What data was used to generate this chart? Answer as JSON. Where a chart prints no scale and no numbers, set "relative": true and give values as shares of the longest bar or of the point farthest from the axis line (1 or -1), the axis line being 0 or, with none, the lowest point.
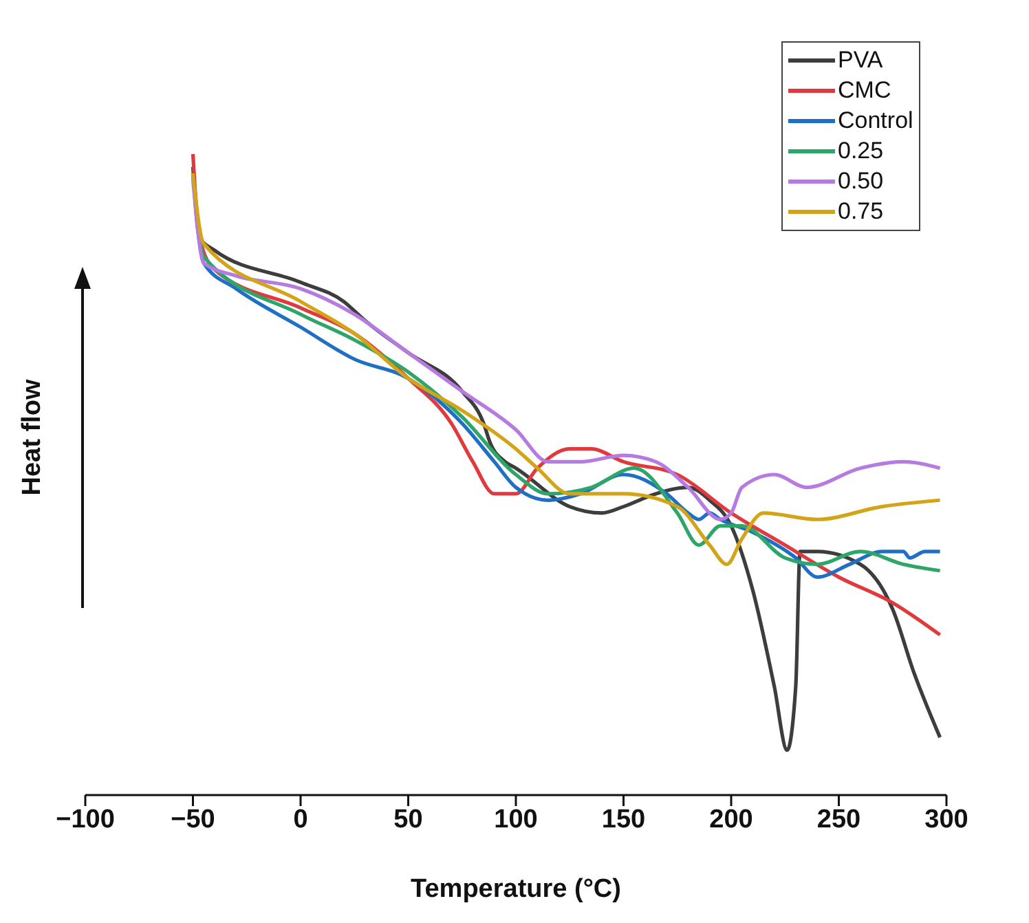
{
  "chart_data": {
    "type": "line",
    "relative": true,
    "xlabel": "Temperature (°C)",
    "ylabel": "Heat flow",
    "xlim": [
      -100,
      300
    ],
    "xticks": [
      -100,
      -50,
      0,
      50,
      100,
      150,
      200,
      250,
      300
    ],
    "grid": false,
    "legend": "top right",
    "marker": "none",
    "line_style": "solid",
    "series": [
      {
        "name": "PVA",
        "color": "#3d3d3d",
        "x": [
          -50,
          -47,
          -40,
          0,
          20,
          30,
          50,
          75,
          85,
          88,
          95,
          100,
          125,
          140,
          150,
          165,
          180,
          190,
          200,
          210,
          220,
          226,
          230,
          232,
          240,
          260,
          275,
          285,
          297
        ],
        "values": [
          0.98,
          0.87,
          0.85,
          0.8,
          0.77,
          0.74,
          0.69,
          0.63,
          0.58,
          0.55,
          0.52,
          0.51,
          0.45,
          0.44,
          0.45,
          0.47,
          0.48,
          0.46,
          0.42,
          0.32,
          0.17,
          0.07,
          0.17,
          0.38,
          0.38,
          0.36,
          0.29,
          0.19,
          0.09
        ]
      },
      {
        "name": "CMC",
        "color": "#e0393e",
        "x": [
          -50,
          -47,
          -40,
          0,
          25,
          50,
          70,
          80,
          90,
          100,
          110,
          125,
          135,
          150,
          175,
          200,
          225,
          250,
          275,
          297
        ],
        "values": [
          1,
          0.87,
          0.82,
          0.76,
          0.72,
          0.65,
          0.58,
          0.52,
          0.47,
          0.47,
          0.51,
          0.54,
          0.54,
          0.52,
          0.5,
          0.44,
          0.39,
          0.34,
          0.3,
          0.25
        ]
      },
      {
        "name": "Control",
        "color": "#1f6fc5",
        "x": [
          -50,
          -45,
          -30,
          0,
          25,
          50,
          75,
          90,
          100,
          115,
          130,
          150,
          170,
          180,
          185,
          190,
          195,
          210,
          230,
          240,
          255,
          270,
          280,
          283,
          290,
          297
        ],
        "values": [
          0.97,
          0.83,
          0.79,
          0.73,
          0.68,
          0.65,
          0.58,
          0.52,
          0.48,
          0.46,
          0.47,
          0.5,
          0.47,
          0.44,
          0.43,
          0.44,
          0.43,
          0.41,
          0.37,
          0.34,
          0.36,
          0.38,
          0.38,
          0.37,
          0.38,
          0.38
        ]
      },
      {
        "name": "0.25",
        "color": "#2ea66a",
        "x": [
          -50,
          -45,
          0,
          25,
          50,
          75,
          100,
          115,
          135,
          155,
          175,
          185,
          195,
          205,
          225,
          240,
          260,
          280,
          297
        ],
        "values": [
          0.97,
          0.84,
          0.75,
          0.71,
          0.66,
          0.59,
          0.5,
          0.47,
          0.48,
          0.51,
          0.44,
          0.39,
          0.42,
          0.42,
          0.37,
          0.36,
          0.38,
          0.36,
          0.35
        ]
      },
      {
        "name": "0.50",
        "color": "#b57be0",
        "x": [
          -50,
          -45,
          -30,
          0,
          25,
          50,
          75,
          100,
          115,
          130,
          150,
          165,
          180,
          195,
          200,
          205,
          220,
          235,
          260,
          280,
          297
        ],
        "values": [
          0.96,
          0.83,
          0.81,
          0.79,
          0.75,
          0.69,
          0.63,
          0.57,
          0.52,
          0.52,
          0.53,
          0.52,
          0.48,
          0.43,
          0.44,
          0.48,
          0.5,
          0.48,
          0.51,
          0.52,
          0.51
        ]
      },
      {
        "name": "0.75",
        "color": "#d4a418",
        "x": [
          -50,
          -45,
          0,
          25,
          50,
          75,
          100,
          110,
          125,
          150,
          175,
          190,
          198,
          205,
          215,
          240,
          270,
          297
        ],
        "values": [
          0.97,
          0.86,
          0.77,
          0.72,
          0.65,
          0.6,
          0.54,
          0.51,
          0.47,
          0.47,
          0.45,
          0.39,
          0.36,
          0.4,
          0.44,
          0.43,
          0.45,
          0.46
        ]
      }
    ]
  }
}
